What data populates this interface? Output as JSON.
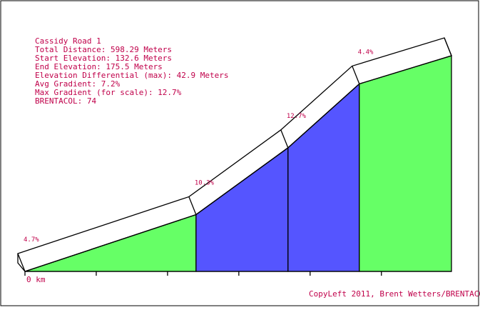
{
  "chart_data": {
    "type": "elevation-profile",
    "info_lines": [
      "Cassidy Road 1",
      "Total Distance: 598.29 Meters",
      "Start Elevation: 132.6 Meters",
      "End Elevation: 175.5 Meters",
      "Elevation Differential (max): 42.9 Meters",
      "Avg Gradient: 7.2%",
      "Max Gradient (for scale): 12.7%",
      "BRENTACOL: 74"
    ],
    "x": [
      0,
      240,
      369,
      469,
      598.29
    ],
    "series": [
      {
        "values": [
          132.6,
          143.9,
          157.2,
          169.9,
          175.5
        ]
      }
    ],
    "segments": {
      "gradients": [
        4.7,
        10.3,
        12.7,
        4.4
      ],
      "value_labels": [
        "4.7%",
        "10.3%",
        "12.7%",
        "4.4%"
      ],
      "colors": [
        "#66ff66",
        "#5555ff",
        "#5555ff",
        "#66ff66"
      ]
    },
    "xlim": [
      0,
      598.29
    ],
    "ylim": [
      132.6,
      175.5
    ],
    "xticks": [
      0,
      100,
      200,
      300,
      400,
      500
    ],
    "x_origin_label": "0 km",
    "footer": "CopyLeft 2011, Brent Wetters/BRENTACOL"
  }
}
